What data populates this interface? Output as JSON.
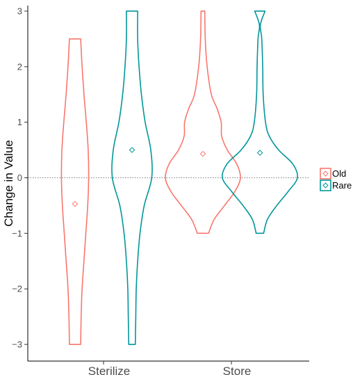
{
  "chart_data": {
    "type": "violin",
    "ylabel": "Change in Value",
    "xlabel": "",
    "categories": [
      "Sterilize",
      "Store"
    ],
    "ylim": [
      -3.3,
      3.1
    ],
    "yticks": [
      -3,
      -2,
      -1,
      0,
      1,
      2,
      3
    ],
    "ytick_labels": [
      "−3",
      "−2",
      "−1",
      "0",
      "1",
      "2",
      "3"
    ],
    "reference_line": {
      "y": 0,
      "style": "dotted"
    },
    "grid": false,
    "legend": {
      "placement": "right",
      "marker": "diamond"
    },
    "series": [
      {
        "name": "Old",
        "color": "#F8766D",
        "violins": [
          {
            "category": "Sterilize",
            "mean": -0.47,
            "range": [
              -3,
              2.5
            ],
            "profile": [
              [
                -3.0,
                0.6
              ],
              [
                -2.5,
                0.65
              ],
              [
                -2.0,
                0.75
              ],
              [
                -1.5,
                0.95
              ],
              [
                -1.0,
                1.15
              ],
              [
                -0.5,
                1.35
              ],
              [
                0.0,
                1.45
              ],
              [
                0.5,
                1.4
              ],
              [
                1.0,
                1.2
              ],
              [
                1.5,
                0.95
              ],
              [
                2.0,
                0.75
              ],
              [
                2.5,
                0.6
              ]
            ]
          },
          {
            "category": "Store",
            "mean": 0.43,
            "range": [
              -1,
              3
            ],
            "profile": [
              [
                -1.0,
                0.6
              ],
              [
                -0.75,
                1.2
              ],
              [
                -0.5,
                2.3
              ],
              [
                -0.25,
                3.4
              ],
              [
                0.0,
                4.0
              ],
              [
                0.25,
                3.6
              ],
              [
                0.5,
                2.6
              ],
              [
                0.75,
                2.0
              ],
              [
                1.0,
                1.95
              ],
              [
                1.25,
                1.5
              ],
              [
                1.5,
                0.9
              ],
              [
                2.0,
                0.45
              ],
              [
                2.5,
                0.25
              ],
              [
                3.0,
                0.2
              ]
            ]
          }
        ]
      },
      {
        "name": "Rare",
        "color": "#00979A",
        "violins": [
          {
            "category": "Sterilize",
            "mean": 0.5,
            "range": [
              -3,
              3
            ],
            "profile": [
              [
                -3.0,
                0.35
              ],
              [
                -2.5,
                0.4
              ],
              [
                -2.0,
                0.45
              ],
              [
                -1.5,
                0.6
              ],
              [
                -1.0,
                0.85
              ],
              [
                -0.5,
                1.3
              ],
              [
                0.0,
                2.1
              ],
              [
                0.5,
                2.0
              ],
              [
                1.0,
                1.4
              ],
              [
                1.5,
                1.0
              ],
              [
                2.0,
                0.75
              ],
              [
                2.5,
                0.6
              ],
              [
                3.0,
                0.6
              ]
            ]
          },
          {
            "category": "Store",
            "mean": 0.45,
            "range": [
              -1,
              3
            ],
            "profile": [
              [
                -1.0,
                0.4
              ],
              [
                -0.75,
                0.8
              ],
              [
                -0.5,
                1.8
              ],
              [
                -0.25,
                3.0
              ],
              [
                0.0,
                4.0
              ],
              [
                0.25,
                3.5
              ],
              [
                0.5,
                2.0
              ],
              [
                0.75,
                1.0
              ],
              [
                1.0,
                0.6
              ],
              [
                1.5,
                0.35
              ],
              [
                2.0,
                0.3
              ],
              [
                2.5,
                0.2
              ],
              [
                2.75,
                0.05
              ],
              [
                3.0,
                0.55
              ]
            ]
          }
        ]
      }
    ]
  }
}
